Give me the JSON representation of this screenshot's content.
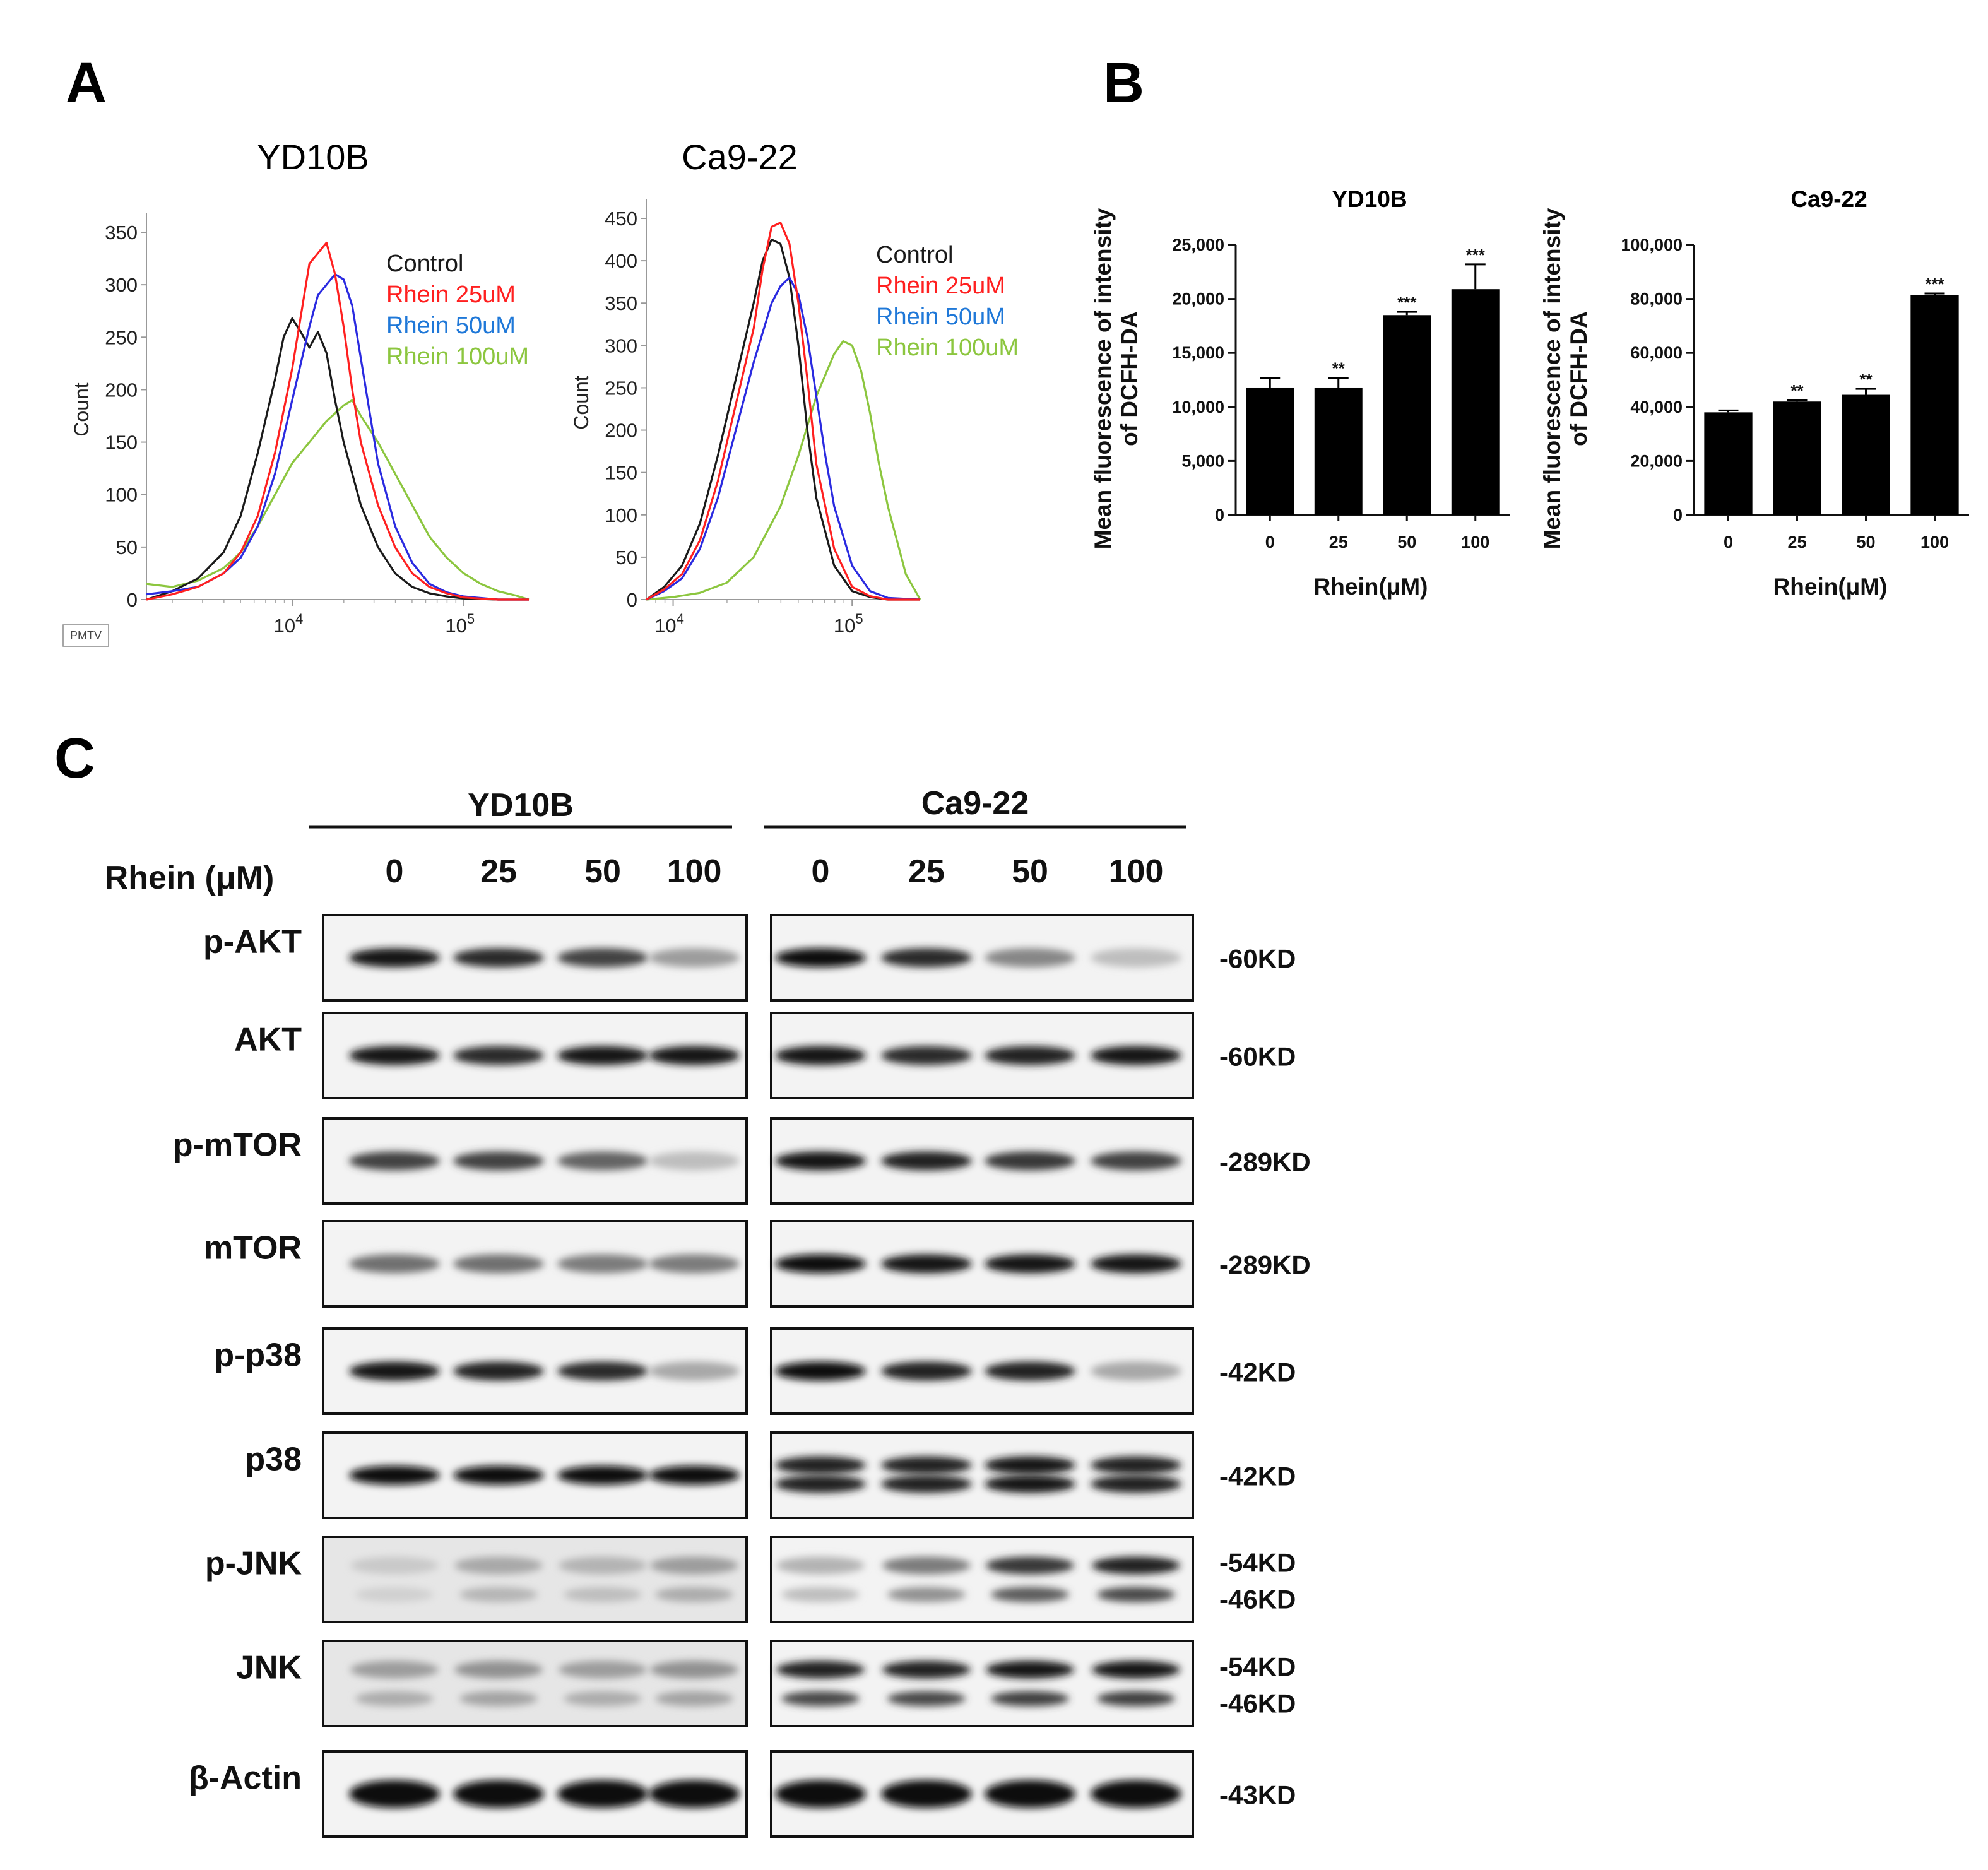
{
  "panels": {
    "a": "A",
    "b": "B",
    "c": "C"
  },
  "flow": {
    "pmtv_label": "PMTV",
    "ylabel": "Count",
    "legend": [
      {
        "label": "Control",
        "color": "#1a1a1a"
      },
      {
        "label": "Rhein 25uM",
        "color": "#ff2020"
      },
      {
        "label": "Rhein 50uM",
        "color": "#1f78d8"
      },
      {
        "label": "Rhein 100uM",
        "color": "#8cc63f"
      }
    ],
    "series_colors": [
      "#1a1a1a",
      "#ff2020",
      "#2a2ae0",
      "#8cc63f"
    ],
    "xtick_exp_base": "10",
    "left": {
      "title": "YD10B",
      "yticks": [
        "350",
        "300",
        "250",
        "200",
        "150",
        "100",
        "50",
        "0"
      ],
      "ytick_values": [
        350,
        300,
        250,
        200,
        150,
        100,
        50,
        0
      ],
      "ymax": 350,
      "xticks": [
        {
          "exp": "4",
          "log": 4.0
        },
        {
          "exp": "5",
          "log": 5.0
        }
      ],
      "xlog_range": [
        3.15,
        5.38
      ],
      "series": [
        {
          "name": "Control",
          "x": [
            3.15,
            3.3,
            3.45,
            3.6,
            3.7,
            3.8,
            3.9,
            3.95,
            4.0,
            4.05,
            4.1,
            4.15,
            4.2,
            4.25,
            4.3,
            4.4,
            4.5,
            4.6,
            4.7,
            4.8,
            4.9,
            5.0,
            5.2,
            5.38
          ],
          "y": [
            0,
            8,
            20,
            45,
            80,
            140,
            210,
            250,
            268,
            255,
            240,
            255,
            235,
            190,
            150,
            90,
            50,
            25,
            12,
            6,
            3,
            1,
            0,
            0
          ]
        },
        {
          "name": "Rhein 25uM",
          "x": [
            3.15,
            3.3,
            3.45,
            3.6,
            3.7,
            3.8,
            3.9,
            4.0,
            4.05,
            4.1,
            4.15,
            4.2,
            4.25,
            4.3,
            4.35,
            4.4,
            4.5,
            4.6,
            4.7,
            4.8,
            4.9,
            5.0,
            5.2,
            5.38
          ],
          "y": [
            0,
            5,
            12,
            25,
            45,
            80,
            140,
            220,
            270,
            320,
            330,
            340,
            310,
            260,
            200,
            150,
            90,
            50,
            25,
            12,
            6,
            2,
            0,
            0
          ]
        },
        {
          "name": "Rhein 50uM",
          "x": [
            3.15,
            3.3,
            3.45,
            3.6,
            3.7,
            3.8,
            3.9,
            4.0,
            4.1,
            4.15,
            4.2,
            4.25,
            4.3,
            4.35,
            4.4,
            4.45,
            4.5,
            4.6,
            4.7,
            4.8,
            4.9,
            5.0,
            5.2,
            5.38
          ],
          "y": [
            5,
            8,
            12,
            25,
            40,
            70,
            120,
            190,
            260,
            290,
            300,
            310,
            305,
            280,
            230,
            180,
            130,
            70,
            35,
            15,
            7,
            3,
            0,
            0
          ]
        },
        {
          "name": "Rhein 100uM",
          "x": [
            3.15,
            3.3,
            3.45,
            3.6,
            3.7,
            3.8,
            3.9,
            4.0,
            4.1,
            4.2,
            4.3,
            4.35,
            4.4,
            4.5,
            4.6,
            4.7,
            4.8,
            4.9,
            5.0,
            5.1,
            5.2,
            5.3,
            5.38
          ],
          "y": [
            15,
            12,
            18,
            30,
            45,
            70,
            100,
            130,
            150,
            170,
            185,
            190,
            175,
            150,
            120,
            90,
            60,
            40,
            25,
            15,
            8,
            4,
            0
          ]
        }
      ]
    },
    "right": {
      "title": "Ca9-22",
      "yticks": [
        "450",
        "400",
        "350",
        "300",
        "250",
        "200",
        "150",
        "100",
        "50",
        "0"
      ],
      "ytick_values": [
        450,
        400,
        350,
        300,
        250,
        200,
        150,
        100,
        50,
        0
      ],
      "ymax": 450,
      "xticks": [
        {
          "exp": "4",
          "log": 4.0
        },
        {
          "exp": "5",
          "log": 5.0
        }
      ],
      "xlog_range": [
        3.85,
        5.38
      ],
      "series": [
        {
          "name": "Control",
          "x": [
            3.85,
            3.95,
            4.05,
            4.15,
            4.25,
            4.35,
            4.45,
            4.5,
            4.55,
            4.6,
            4.65,
            4.7,
            4.75,
            4.8,
            4.9,
            5.0,
            5.1,
            5.2,
            5.38
          ],
          "y": [
            0,
            15,
            40,
            90,
            170,
            260,
            350,
            400,
            425,
            420,
            380,
            300,
            200,
            120,
            40,
            10,
            3,
            0,
            0
          ]
        },
        {
          "name": "Rhein 25uM",
          "x": [
            3.85,
            3.95,
            4.05,
            4.15,
            4.25,
            4.35,
            4.45,
            4.5,
            4.55,
            4.6,
            4.65,
            4.7,
            4.75,
            4.8,
            4.9,
            5.0,
            5.1,
            5.2,
            5.38
          ],
          "y": [
            0,
            12,
            30,
            70,
            140,
            230,
            320,
            390,
            440,
            445,
            420,
            350,
            260,
            160,
            60,
            15,
            4,
            0,
            0
          ]
        },
        {
          "name": "Rhein 50uM",
          "x": [
            3.85,
            3.95,
            4.05,
            4.15,
            4.25,
            4.35,
            4.45,
            4.55,
            4.6,
            4.65,
            4.7,
            4.75,
            4.8,
            4.85,
            4.9,
            5.0,
            5.1,
            5.2,
            5.38
          ],
          "y": [
            0,
            10,
            25,
            60,
            120,
            200,
            280,
            350,
            370,
            380,
            360,
            310,
            240,
            170,
            110,
            40,
            10,
            2,
            0
          ]
        },
        {
          "name": "Rhein 100uM",
          "x": [
            3.85,
            4.0,
            4.15,
            4.3,
            4.45,
            4.6,
            4.7,
            4.8,
            4.9,
            4.95,
            5.0,
            5.05,
            5.1,
            5.15,
            5.2,
            5.25,
            5.3,
            5.38
          ],
          "y": [
            0,
            3,
            8,
            20,
            50,
            110,
            170,
            240,
            290,
            305,
            300,
            270,
            220,
            160,
            110,
            70,
            30,
            0
          ]
        }
      ]
    }
  },
  "bars": {
    "ylabel_line1": "Mean fluorescence of intensity",
    "ylabel_line2": "of DCFH-DA",
    "xlabel": "Rhein(μM)",
    "left": {
      "title": "YD10B",
      "categories": [
        "0",
        "25",
        "50",
        "100"
      ],
      "values": [
        11800,
        11800,
        18500,
        20900
      ],
      "errors": [
        900,
        900,
        300,
        2300
      ],
      "sig": [
        "",
        "**",
        "***",
        "***"
      ],
      "ymax": 25000,
      "yticks": [
        "25,000",
        "20,000",
        "15,000",
        "10,000",
        "5,000",
        "0"
      ],
      "ytick_values": [
        25000,
        20000,
        15000,
        10000,
        5000,
        0
      ]
    },
    "right": {
      "title": "Ca9-22",
      "categories": [
        "0",
        "25",
        "50",
        "100"
      ],
      "values": [
        38000,
        42000,
        44500,
        81500
      ],
      "errors": [
        700,
        500,
        2200,
        500
      ],
      "sig": [
        "",
        "**",
        "**",
        "***"
      ],
      "ymax": 100000,
      "yticks": [
        "100,000",
        "80,000",
        "60,000",
        "40,000",
        "20,000",
        "0"
      ],
      "ytick_values": [
        100000,
        80000,
        60000,
        40000,
        20000,
        0
      ]
    }
  },
  "western": {
    "cells": [
      "YD10B",
      "Ca9-22"
    ],
    "treatment_label": "Rhein (μM)",
    "doses": [
      "0",
      "25",
      "50",
      "100"
    ],
    "rows": [
      {
        "label": "p-AKT",
        "kd": [
          "-60KD"
        ],
        "yd": [
          0.95,
          0.85,
          0.75,
          0.35
        ],
        "ca": [
          1.0,
          0.85,
          0.45,
          0.2
        ]
      },
      {
        "label": "AKT",
        "kd": [
          "-60KD"
        ],
        "yd": [
          0.95,
          0.85,
          0.95,
          0.95
        ],
        "ca": [
          0.95,
          0.85,
          0.9,
          0.95
        ]
      },
      {
        "label": "p-mTOR",
        "kd": [
          "-289KD"
        ],
        "yd": [
          0.75,
          0.75,
          0.6,
          0.2
        ],
        "ca": [
          0.95,
          0.9,
          0.8,
          0.75
        ]
      },
      {
        "label": "mTOR",
        "kd": [
          "-289KD"
        ],
        "yd": [
          0.55,
          0.55,
          0.5,
          0.5
        ],
        "ca": [
          1.0,
          0.95,
          0.95,
          0.95
        ]
      },
      {
        "label": "p-p38",
        "kd": [
          "-42KD"
        ],
        "yd": [
          0.95,
          0.9,
          0.85,
          0.3
        ],
        "ca": [
          1.0,
          0.9,
          0.9,
          0.3
        ]
      },
      {
        "label": "p38",
        "kd": [
          "-42KD"
        ],
        "yd": [
          1.0,
          1.0,
          1.0,
          1.0
        ],
        "ca": [
          0.9,
          0.9,
          0.95,
          0.9
        ]
      },
      {
        "label": "p-JNK",
        "kd": [
          "-54KD",
          "-46KD"
        ],
        "yd": [
          0.15,
          0.3,
          0.25,
          0.35
        ],
        "ca": [
          0.25,
          0.5,
          0.8,
          0.9
        ]
      },
      {
        "label": "JNK",
        "kd": [
          "-54KD",
          "-46KD"
        ],
        "yd": [
          0.35,
          0.4,
          0.35,
          0.4
        ],
        "ca": [
          0.9,
          0.9,
          0.95,
          0.95
        ]
      },
      {
        "label": "β-Actin",
        "kd": [
          "-43KD"
        ],
        "yd": [
          1.0,
          1.0,
          1.0,
          1.0
        ],
        "ca": [
          1.0,
          1.0,
          1.0,
          1.0
        ]
      }
    ]
  },
  "chart_data": [
    {
      "type": "line",
      "title": "YD10B",
      "xlabel": "",
      "ylabel": "Count",
      "xscale": "log",
      "ylim": [
        0,
        350
      ],
      "legend": [
        "Control",
        "Rhein 25uM",
        "Rhein 50uM",
        "Rhein 100uM"
      ],
      "note": "flow cytometry histograms; series in flow.left.series (x as log10 intensity)"
    },
    {
      "type": "line",
      "title": "Ca9-22",
      "xlabel": "",
      "ylabel": "Count",
      "xscale": "log",
      "ylim": [
        0,
        450
      ],
      "legend": [
        "Control",
        "Rhein 25uM",
        "Rhein 50uM",
        "Rhein 100uM"
      ],
      "note": "series in flow.right.series"
    },
    {
      "type": "bar",
      "title": "YD10B",
      "categories": [
        "0",
        "25",
        "50",
        "100"
      ],
      "values": [
        11800,
        11800,
        18500,
        20900
      ],
      "xlabel": "Rhein(μM)",
      "ylabel": "Mean fluorescence of intensity of DCFH-DA",
      "ylim": [
        0,
        25000
      ]
    },
    {
      "type": "bar",
      "title": "Ca9-22",
      "categories": [
        "0",
        "25",
        "50",
        "100"
      ],
      "values": [
        38000,
        42000,
        44500,
        81500
      ],
      "xlabel": "Rhein(μM)",
      "ylabel": "Mean fluorescence of intensity of DCFH-DA",
      "ylim": [
        0,
        100000
      ]
    }
  ]
}
